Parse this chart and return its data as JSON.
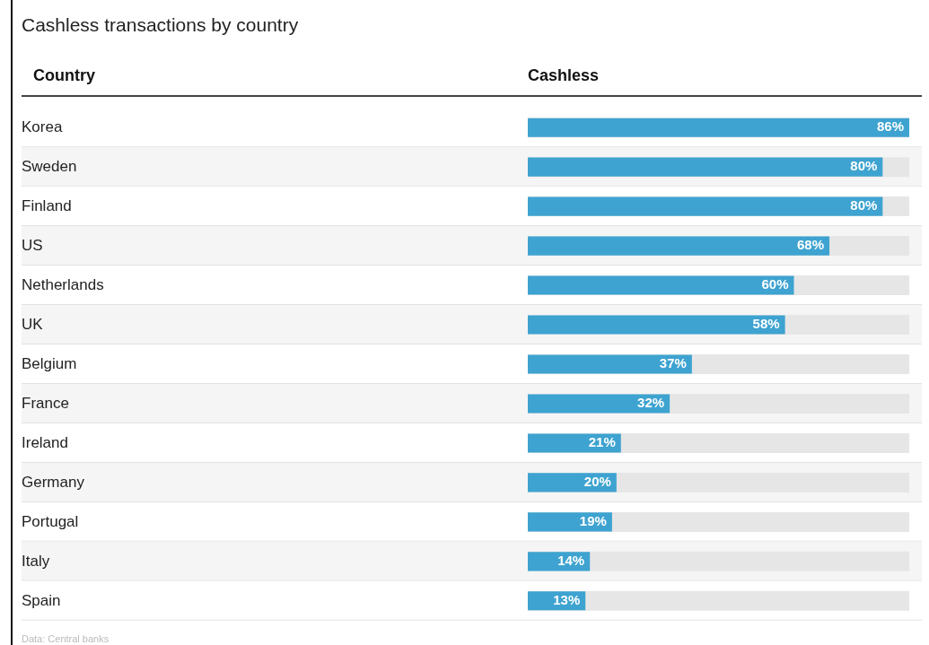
{
  "chart_data": {
    "type": "bar",
    "orientation": "horizontal",
    "title": "Cashless transactions by country",
    "xlabel": "Cashless",
    "categories": [
      "Korea",
      "Sweden",
      "Finland",
      "US",
      "Netherlands",
      "UK",
      "Belgium",
      "France",
      "Ireland",
      "Germany",
      "Portugal",
      "Italy",
      "Spain"
    ],
    "values": [
      86,
      80,
      80,
      68,
      60,
      58,
      37,
      32,
      21,
      20,
      19,
      14,
      13
    ],
    "value_labels": [
      "86%",
      "80%",
      "80%",
      "68%",
      "60%",
      "58%",
      "37%",
      "32%",
      "21%",
      "20%",
      "19%",
      "14%",
      "13%"
    ],
    "color": "#3ea3d0",
    "xlim": [
      0,
      86
    ],
    "tick_labels": "y",
    "grid": false,
    "legend": false,
    "annotations": [
      "Country",
      "Data: Central banks"
    ]
  }
}
